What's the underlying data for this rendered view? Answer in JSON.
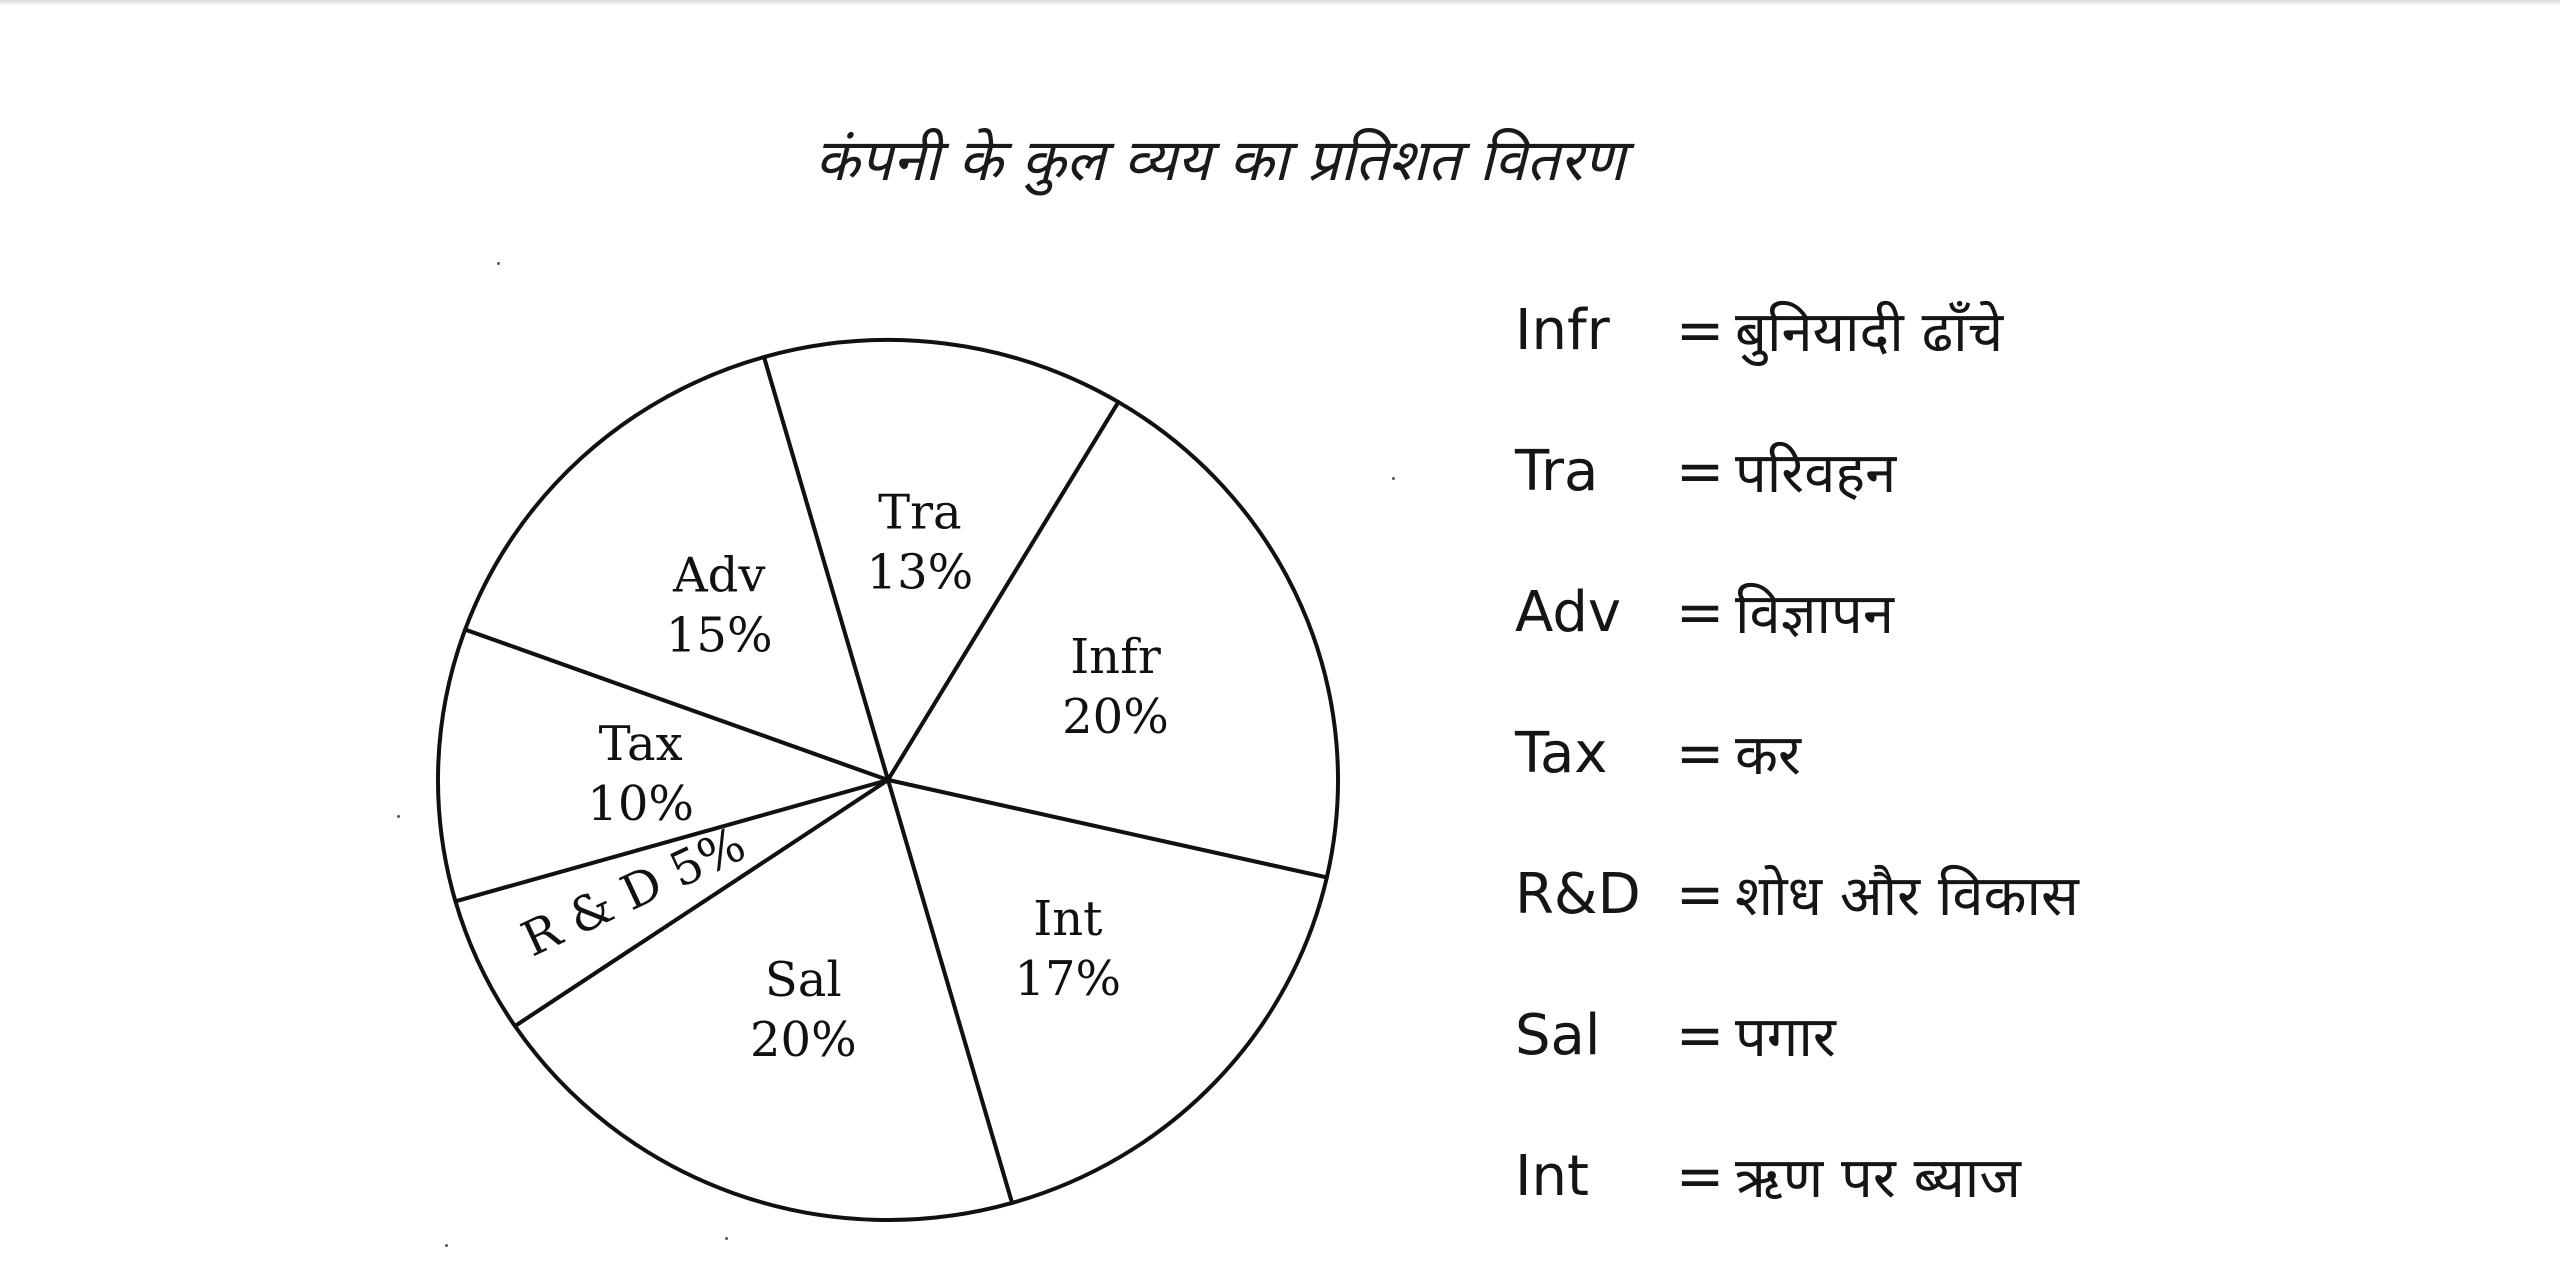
{
  "chart_data": {
    "type": "pie",
    "title": "कंपनी के कुल व्यय का प्रतिशत वितरण",
    "slices": [
      {
        "label": "Tra",
        "value": 13,
        "value_label": "13%"
      },
      {
        "label": "Infr",
        "value": 20,
        "value_label": "20%"
      },
      {
        "label": "Int",
        "value": 17,
        "value_label": "17%"
      },
      {
        "label": "Sal",
        "value": 20,
        "value_label": "20%"
      },
      {
        "label": "R & D",
        "value": 5,
        "value_label": "5%"
      },
      {
        "label": "Tax",
        "value": 10,
        "value_label": "10%"
      },
      {
        "label": "Adv",
        "value": 15,
        "value_label": "15%"
      }
    ],
    "legend": [
      {
        "abbr": "Infr",
        "eq": "=",
        "desc": "बुनियादी ढाँचे"
      },
      {
        "abbr": "Tra",
        "eq": "=",
        "desc": "परिवहन"
      },
      {
        "abbr": "Adv",
        "eq": "=",
        "desc": "विज्ञापन"
      },
      {
        "abbr": "Tax",
        "eq": "=",
        "desc": "कर"
      },
      {
        "abbr": "R&D",
        "eq": "=",
        "desc": "शोध और विकास"
      },
      {
        "abbr": "Sal",
        "eq": "=",
        "desc": "पगार"
      },
      {
        "abbr": "Int",
        "eq": "=",
        "desc": "ऋण पर ब्याज"
      }
    ],
    "legend_position": "right"
  },
  "colors": {
    "stroke": "#111111",
    "fill": "#ffffff",
    "text": "#111111"
  }
}
